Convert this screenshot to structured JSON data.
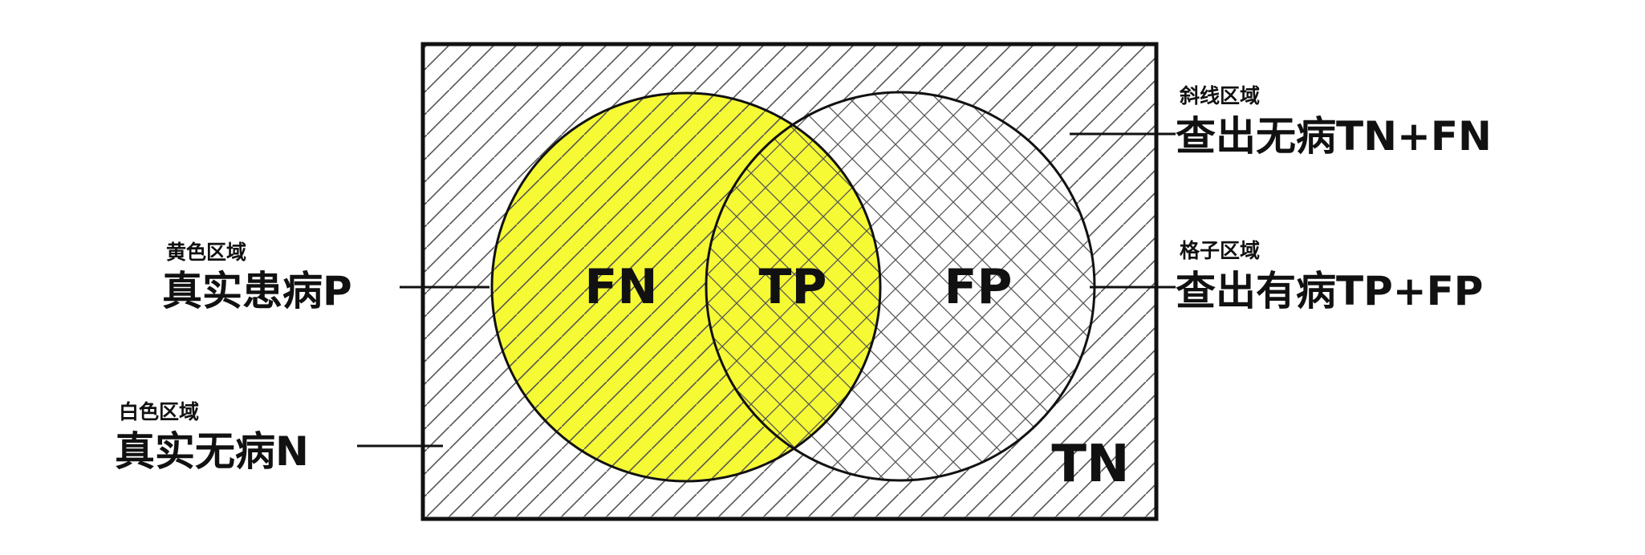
{
  "colors": {
    "yellow": "#f5fa35",
    "outline": "#111111",
    "hatch": "#555555",
    "background": "#ffffff"
  },
  "regions": {
    "fn": "FN",
    "tp": "TP",
    "fp": "FP",
    "tn": "TN"
  },
  "annotations": {
    "yellow_area": {
      "caption": "黄色区域",
      "label": "真实患病P"
    },
    "white_area": {
      "caption": "白色区域",
      "label": "真实无病N"
    },
    "diagonal_area": {
      "caption": "斜线区域",
      "label": "查出无病TN+FN"
    },
    "grid_area": {
      "caption": "格子区域",
      "label": "查出有病TP+FP"
    }
  }
}
